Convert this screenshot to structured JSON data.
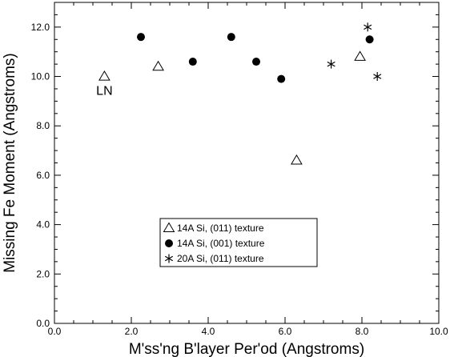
{
  "chart_data": {
    "type": "scatter",
    "xlabel": "M'ss'ng B'layer Per'od (Angstroms)",
    "ylabel": "Missing Fe Moment (Angstroms)",
    "xlim": [
      0,
      10
    ],
    "ylim": [
      0,
      13
    ],
    "x_ticks": [
      "0.0",
      "2.0",
      "4.0",
      "6.0",
      "8.0",
      "10.0"
    ],
    "y_ticks": [
      "0.0",
      "2.0",
      "4.0",
      "6.0",
      "8.0",
      "10.0",
      "12.0"
    ],
    "grid": false,
    "legend_position": "bottom-center",
    "series": [
      {
        "name": "14A Si, (011) texture",
        "marker": "open-triangle",
        "points": [
          [
            1.3,
            10.0
          ],
          [
            2.7,
            10.4
          ],
          [
            6.3,
            6.6
          ],
          [
            7.95,
            10.8
          ]
        ]
      },
      {
        "name": "14A Si, (001) texture",
        "marker": "filled-circle",
        "points": [
          [
            2.25,
            11.6
          ],
          [
            3.6,
            10.6
          ],
          [
            4.6,
            11.6
          ],
          [
            5.25,
            10.6
          ],
          [
            5.9,
            9.9
          ],
          [
            8.2,
            11.5
          ]
        ]
      },
      {
        "name": "20A Si, (011) texture",
        "marker": "asterisk",
        "points": [
          [
            7.2,
            10.5
          ],
          [
            8.15,
            12.0
          ],
          [
            8.4,
            10.0
          ]
        ]
      }
    ],
    "annotations": [
      {
        "text": "LN",
        "x": 1.3,
        "y": 9.45
      }
    ]
  }
}
